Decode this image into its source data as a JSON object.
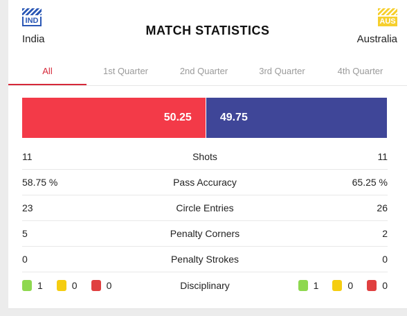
{
  "home": {
    "code": "IND",
    "name": "India",
    "color": "#f33a48"
  },
  "away": {
    "code": "AUS",
    "name": "Australia",
    "color": "#3f4698"
  },
  "title": "MATCH STATISTICS",
  "tabs": [
    "All",
    "1st Quarter",
    "2nd Quarter",
    "3rd Quarter",
    "4th Quarter"
  ],
  "active_tab": "All",
  "possession": {
    "home": "50.25",
    "away": "49.75",
    "home_pct": 50.25,
    "away_pct": 49.75
  },
  "stats": [
    {
      "label": "Shots",
      "home": "11",
      "away": "11"
    },
    {
      "label": "Pass Accuracy",
      "home": "58.75 %",
      "away": "65.25 %"
    },
    {
      "label": "Circle Entries",
      "home": "23",
      "away": "26"
    },
    {
      "label": "Penalty Corners",
      "home": "5",
      "away": "2"
    },
    {
      "label": "Penalty Strokes",
      "home": "0",
      "away": "0"
    }
  ],
  "disciplinary": {
    "label": "Disciplinary",
    "home": {
      "green": "1",
      "yellow": "0",
      "red": "0"
    },
    "away": {
      "green": "1",
      "yellow": "0",
      "red": "0"
    }
  }
}
